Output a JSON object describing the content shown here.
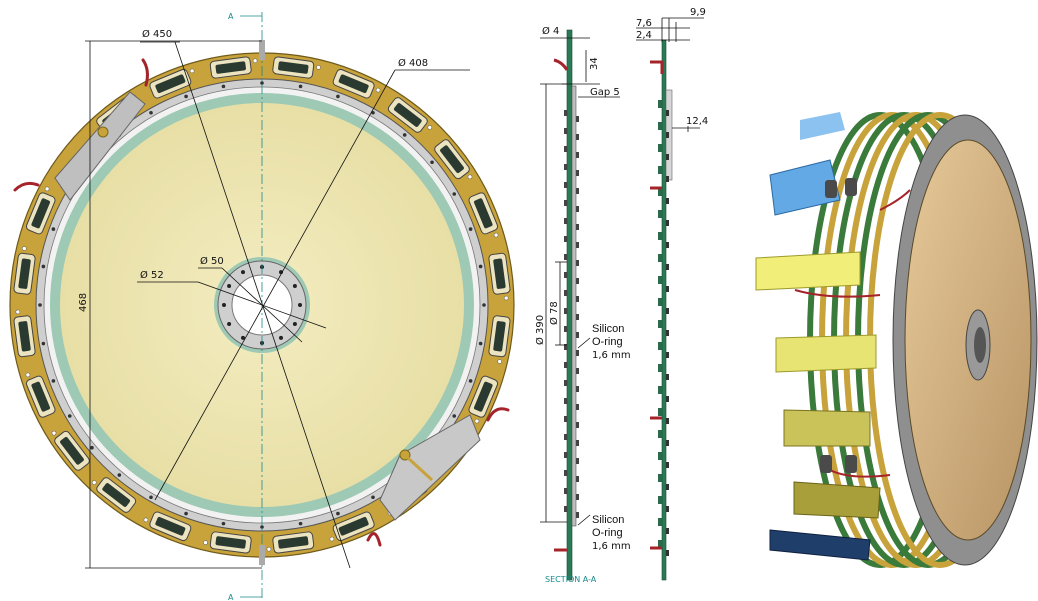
{
  "front_view": {
    "section_marker": "A",
    "dimensions": {
      "d450": "Ø 450",
      "d408": "Ø 408",
      "d50": "Ø 50",
      "d52": "Ø 52",
      "h468": "468"
    }
  },
  "section_view": {
    "dimensions": {
      "d4": "Ø 4",
      "v34": "34",
      "gap5": "Gap 5",
      "d390": "Ø 390",
      "d78": "Ø 78",
      "v7_6": "7,6",
      "v9_9": "9,9",
      "v2_4": "2,4",
      "v12_4": "12,4"
    },
    "oring_top": [
      "Silicon",
      "O-ring",
      "1,6  mm"
    ],
    "oring_bottom": [
      "Silicon",
      "O-ring",
      "1,6  mm"
    ],
    "caption": "SECTION A-A"
  },
  "colors": {
    "frame": "#c8a23a",
    "membrane": "#efe7b4",
    "ring": "#9ec9b4",
    "accent": "#1a8a8a"
  }
}
